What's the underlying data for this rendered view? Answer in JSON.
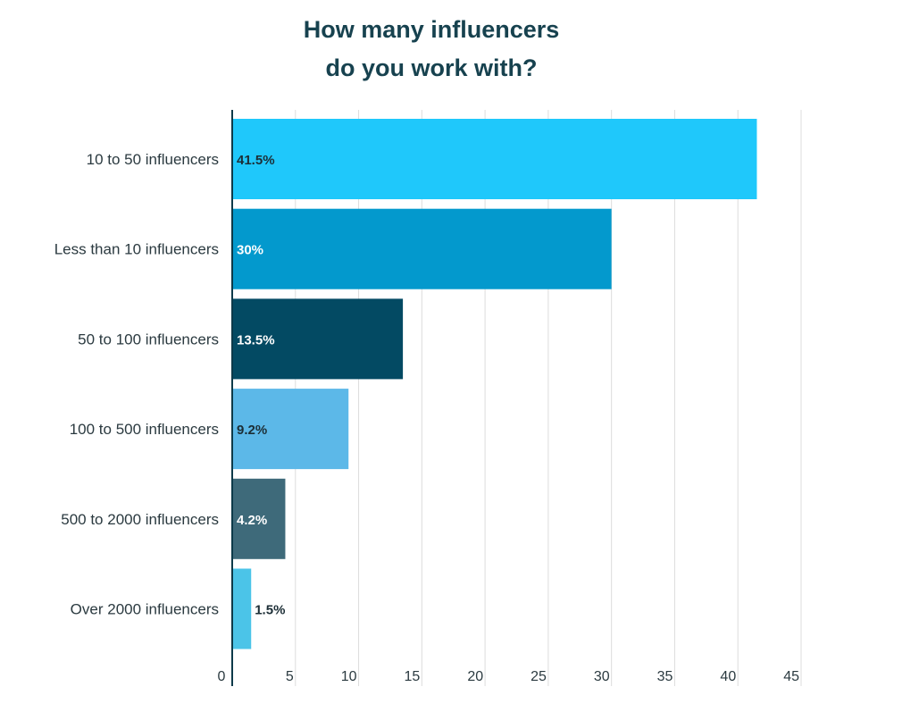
{
  "chart_data": {
    "type": "bar",
    "orientation": "horizontal",
    "title_lines": [
      "How many influencers",
      "do you work with?"
    ],
    "categories": [
      "10 to 50 influencers",
      "Less than 10 influencers",
      "50 to 100 influencers",
      "100 to 500 influencers",
      "500 to 2000 influencers",
      "Over 2000 influencers"
    ],
    "values": [
      41.5,
      30,
      13.5,
      9.2,
      4.2,
      1.5
    ],
    "value_labels": [
      "41.5%",
      "30%",
      "13.5%",
      "9.2%",
      "4.2%",
      "1.5%"
    ],
    "bar_colors": [
      "#1fc8fb",
      "#0399cd",
      "#034a63",
      "#5cb8e8",
      "#3e6a7a",
      "#4bc4e8"
    ],
    "label_colors": [
      "#1c2e36",
      "#ffffff",
      "#ffffff",
      "#1c2e36",
      "#ffffff",
      "#1c2e36"
    ],
    "xlim": [
      0,
      45
    ],
    "xticks": [
      0,
      5,
      10,
      15,
      20,
      25,
      30,
      35,
      40,
      45
    ],
    "xtick_labels": [
      "0",
      "5",
      "10",
      "15",
      "20",
      "25",
      "30",
      "35",
      "40",
      "45"
    ],
    "grid": true,
    "legend": "none"
  }
}
